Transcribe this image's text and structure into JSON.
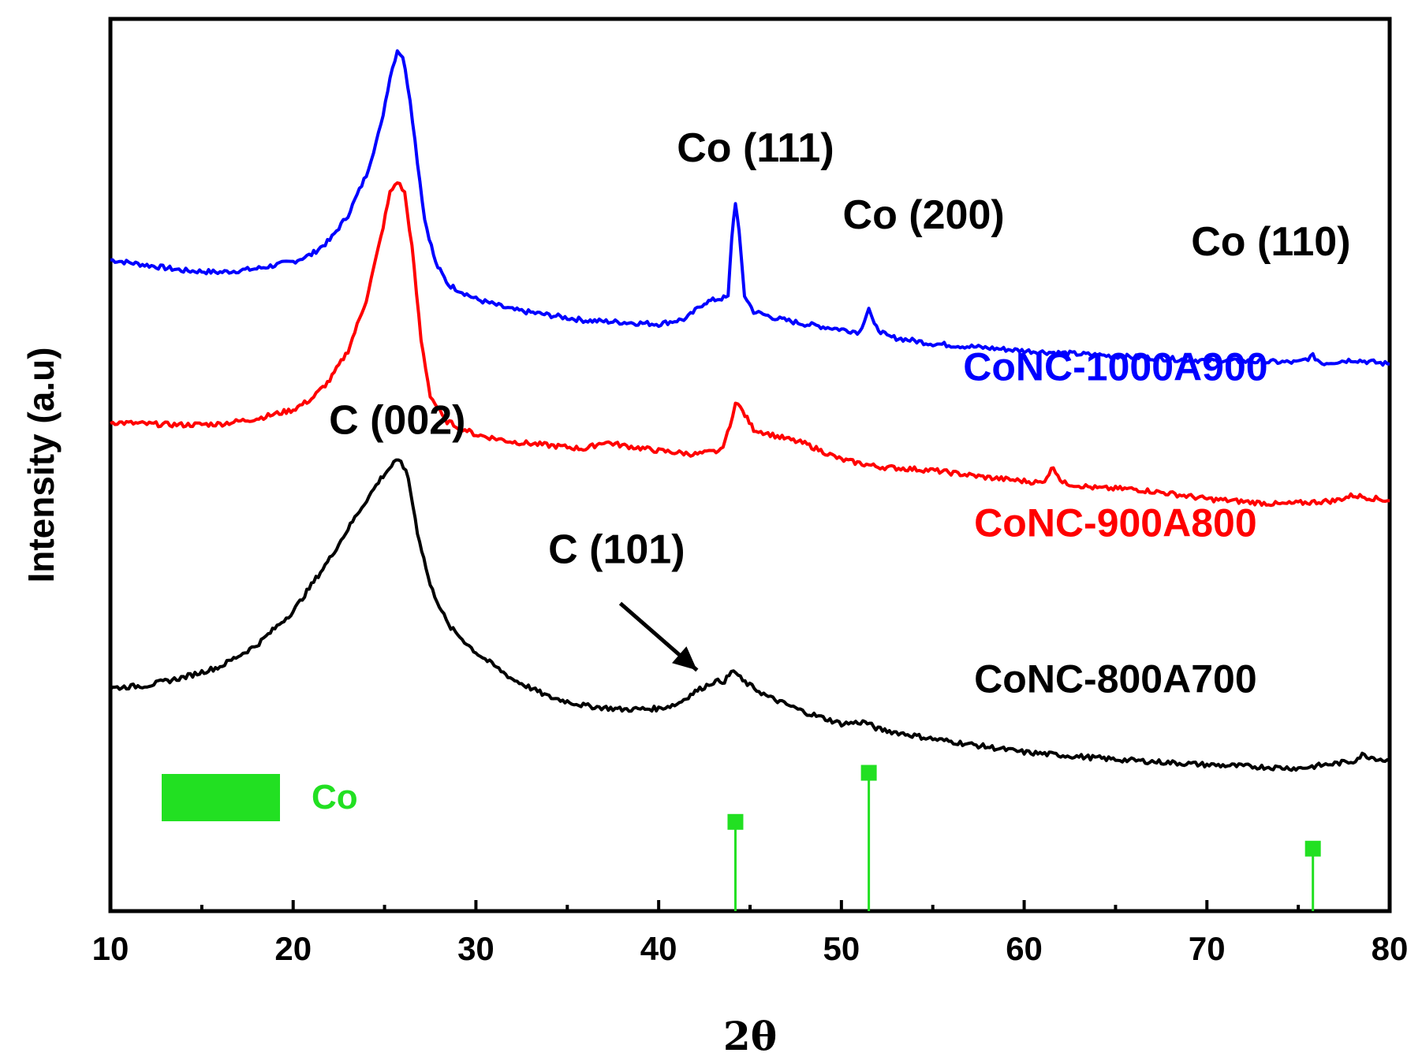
{
  "chart_data": {
    "type": "line",
    "title": "",
    "xlabel": "2θ",
    "ylabel": "Intensity (a.u)",
    "xlim": [
      10,
      80
    ],
    "ylim": [
      0,
      100
    ],
    "x_ticks": [
      10,
      20,
      30,
      40,
      50,
      60,
      70,
      80
    ],
    "x_tick_labels": [
      "10",
      "20",
      "30",
      "40",
      "50",
      "60",
      "70",
      "80"
    ],
    "y_ticks_shown": false,
    "grid": false,
    "series": [
      {
        "name": "CoNC-1000A900",
        "color": "#0000ff",
        "points": [
          [
            10,
            73.0
          ],
          [
            12,
            72.4
          ],
          [
            14,
            71.8
          ],
          [
            16,
            71.6
          ],
          [
            18,
            72.0
          ],
          [
            20,
            72.8
          ],
          [
            21,
            73.6
          ],
          [
            22,
            75.2
          ],
          [
            23,
            78.0
          ],
          [
            24,
            82.5
          ],
          [
            24.8,
            88.0
          ],
          [
            25.3,
            93.5
          ],
          [
            25.7,
            96.5
          ],
          [
            26.0,
            95.8
          ],
          [
            26.4,
            91.0
          ],
          [
            26.8,
            84.0
          ],
          [
            27.2,
            77.5
          ],
          [
            27.8,
            72.6
          ],
          [
            28.5,
            70.2
          ],
          [
            30,
            68.6
          ],
          [
            32,
            67.4
          ],
          [
            34,
            66.8
          ],
          [
            36,
            66.2
          ],
          [
            38,
            66.0
          ],
          [
            40,
            65.8
          ],
          [
            41.5,
            66.4
          ],
          [
            42.5,
            68.2
          ],
          [
            43.2,
            68.6
          ],
          [
            43.8,
            68.8
          ],
          [
            44.0,
            75.5
          ],
          [
            44.2,
            79.5
          ],
          [
            44.4,
            76.0
          ],
          [
            44.7,
            69.0
          ],
          [
            45.2,
            67.2
          ],
          [
            46.5,
            66.4
          ],
          [
            48,
            65.8
          ],
          [
            50,
            65.2
          ],
          [
            51,
            64.9
          ],
          [
            51.5,
            67.6
          ],
          [
            51.8,
            65.6
          ],
          [
            52.5,
            64.4
          ],
          [
            55,
            63.6
          ],
          [
            60,
            62.8
          ],
          [
            65,
            62.2
          ],
          [
            70,
            61.7
          ],
          [
            75,
            61.5
          ],
          [
            75.8,
            62.2
          ],
          [
            76.3,
            61.4
          ],
          [
            78,
            61.8
          ],
          [
            80,
            61.3
          ]
        ]
      },
      {
        "name": "CoNC-900A800",
        "color": "#ff0000",
        "points": [
          [
            10,
            54.8
          ],
          [
            12,
            54.6
          ],
          [
            14,
            54.5
          ],
          [
            16,
            54.6
          ],
          [
            18,
            55.2
          ],
          [
            20,
            56.2
          ],
          [
            21,
            57.4
          ],
          [
            22,
            59.5
          ],
          [
            23,
            62.8
          ],
          [
            24,
            68.5
          ],
          [
            24.8,
            75.5
          ],
          [
            25.3,
            80.5
          ],
          [
            25.7,
            81.8
          ],
          [
            26.1,
            80.5
          ],
          [
            26.5,
            74.5
          ],
          [
            27.0,
            64.0
          ],
          [
            27.5,
            57.8
          ],
          [
            28.3,
            55.0
          ],
          [
            30,
            53.4
          ],
          [
            32,
            52.6
          ],
          [
            34,
            52.2
          ],
          [
            36,
            51.8
          ],
          [
            37,
            52.6
          ],
          [
            38,
            52.2
          ],
          [
            40,
            51.6
          ],
          [
            42,
            51.2
          ],
          [
            43.4,
            51.6
          ],
          [
            43.9,
            54.2
          ],
          [
            44.2,
            57.2
          ],
          [
            44.6,
            56.0
          ],
          [
            45.2,
            54.0
          ],
          [
            46.5,
            53.2
          ],
          [
            48,
            52.4
          ],
          [
            50,
            50.6
          ],
          [
            52,
            49.8
          ],
          [
            55,
            49.4
          ],
          [
            58,
            48.6
          ],
          [
            61,
            48.0
          ],
          [
            61.6,
            49.8
          ],
          [
            62.1,
            48.0
          ],
          [
            64,
            47.4
          ],
          [
            66,
            47.3
          ],
          [
            68,
            46.8
          ],
          [
            70,
            46.2
          ],
          [
            74,
            45.6
          ],
          [
            77,
            46.0
          ],
          [
            78,
            46.6
          ],
          [
            80,
            46.0
          ]
        ]
      },
      {
        "name": "CoNC-800A700",
        "color": "#000000",
        "points": [
          [
            10,
            25.0
          ],
          [
            12,
            25.3
          ],
          [
            14,
            26.2
          ],
          [
            16,
            27.4
          ],
          [
            18,
            29.8
          ],
          [
            20,
            33.6
          ],
          [
            22,
            39.5
          ],
          [
            23.5,
            44.5
          ],
          [
            24.8,
            48.5
          ],
          [
            25.5,
            50.2
          ],
          [
            25.9,
            50.5
          ],
          [
            26.3,
            48.5
          ],
          [
            26.8,
            42.5
          ],
          [
            27.5,
            36.5
          ],
          [
            28.5,
            32.0
          ],
          [
            30,
            29.0
          ],
          [
            32,
            26.0
          ],
          [
            34,
            24.0
          ],
          [
            36,
            23.0
          ],
          [
            38,
            22.6
          ],
          [
            40,
            22.7
          ],
          [
            41,
            23.2
          ],
          [
            42,
            24.6
          ],
          [
            43,
            25.7
          ],
          [
            43.6,
            25.8
          ],
          [
            44.1,
            27.0
          ],
          [
            44.6,
            25.8
          ],
          [
            46,
            24.0
          ],
          [
            48,
            22.3
          ],
          [
            50,
            21.0
          ],
          [
            51.3,
            21.2
          ],
          [
            52,
            20.4
          ],
          [
            55,
            19.3
          ],
          [
            60,
            17.8
          ],
          [
            65,
            17.0
          ],
          [
            70,
            16.4
          ],
          [
            75,
            16.0
          ],
          [
            78,
            16.8
          ],
          [
            78.5,
            17.5
          ],
          [
            80,
            16.8
          ]
        ]
      }
    ],
    "reference_pattern": {
      "name": "Co",
      "color": "#22e022",
      "peaks": [
        {
          "two_theta": 44.2,
          "intensity": 10.0
        },
        {
          "two_theta": 51.5,
          "intensity": 15.5
        },
        {
          "two_theta": 75.8,
          "intensity": 7.0
        }
      ]
    },
    "annotations": [
      {
        "text": "Co (111)",
        "x": 45.3,
        "y": 84
      },
      {
        "text": "Co (200)",
        "x": 54.5,
        "y": 76.5
      },
      {
        "text": "Co (110)",
        "x": 73.5,
        "y": 73.5
      },
      {
        "text": "C (002)",
        "x": 25.7,
        "y": 53.5
      },
      {
        "text": "C (101)",
        "x": 37.7,
        "y": 39
      }
    ],
    "arrow": {
      "from": [
        37.9,
        34.5
      ],
      "to": [
        42.1,
        27.0
      ]
    },
    "series_labels": [
      {
        "text": "CoNC-1000A900",
        "x": 65.0,
        "y": 59.5
      },
      {
        "text": "CoNC-900A800",
        "x": 65.0,
        "y": 42.0
      },
      {
        "text": "CoNC-800A700",
        "x": 65.0,
        "y": 24.5
      }
    ],
    "legend": {
      "label": "Co",
      "placement": "bottom-left"
    }
  }
}
